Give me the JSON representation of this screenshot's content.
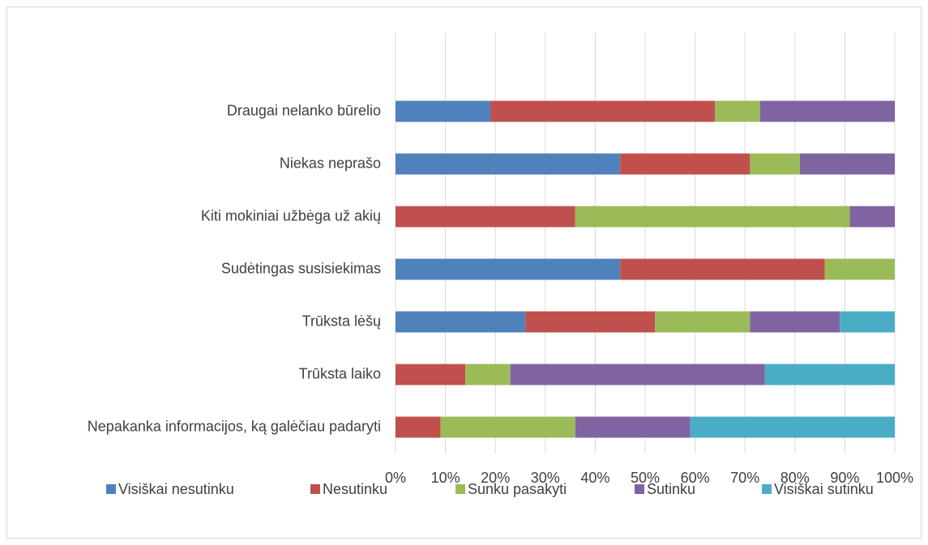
{
  "chart_data": {
    "type": "stacked_bar_horizontal",
    "categories": [
      "Draugai nelanko būrelio",
      "Niekas neprašo",
      "Kiti mokiniai užbėga už akių",
      "Sudėtingas susisiekimas",
      "Trūksta lėšų",
      "Trūksta laiko",
      "Nepakanka informacijos, ką galėčiau padaryti"
    ],
    "series": [
      {
        "name": "Visiškai nesutinku",
        "color": "#4f81bd",
        "values": [
          19,
          45,
          0,
          45,
          26,
          0,
          0
        ]
      },
      {
        "name": "Nesutinku",
        "color": "#c0504d",
        "values": [
          45,
          26,
          36,
          41,
          26,
          14,
          9
        ]
      },
      {
        "name": "Sunku pasakyti",
        "color": "#9bbb59",
        "values": [
          9,
          10,
          55,
          14,
          19,
          9,
          27
        ]
      },
      {
        "name": "Sutinku",
        "color": "#8064a2",
        "values": [
          27,
          19,
          9,
          0,
          18,
          51,
          23
        ]
      },
      {
        "name": "Visiškai sutinku",
        "color": "#4bacc6",
        "values": [
          0,
          0,
          0,
          0,
          11,
          26,
          41
        ]
      }
    ],
    "xlim": [
      0,
      100
    ],
    "xticks": [
      {
        "value": 0,
        "label": "0%"
      },
      {
        "value": 10,
        "label": "10%"
      },
      {
        "value": 20,
        "label": "20%"
      },
      {
        "value": 30,
        "label": "30%"
      },
      {
        "value": 40,
        "label": "40%"
      },
      {
        "value": 50,
        "label": "50%"
      },
      {
        "value": 60,
        "label": "60%"
      },
      {
        "value": 70,
        "label": "70%"
      },
      {
        "value": 80,
        "label": "80%"
      },
      {
        "value": 90,
        "label": "90%"
      },
      {
        "value": 100,
        "label": "100%"
      }
    ],
    "grid": true,
    "legend": "bottom"
  }
}
